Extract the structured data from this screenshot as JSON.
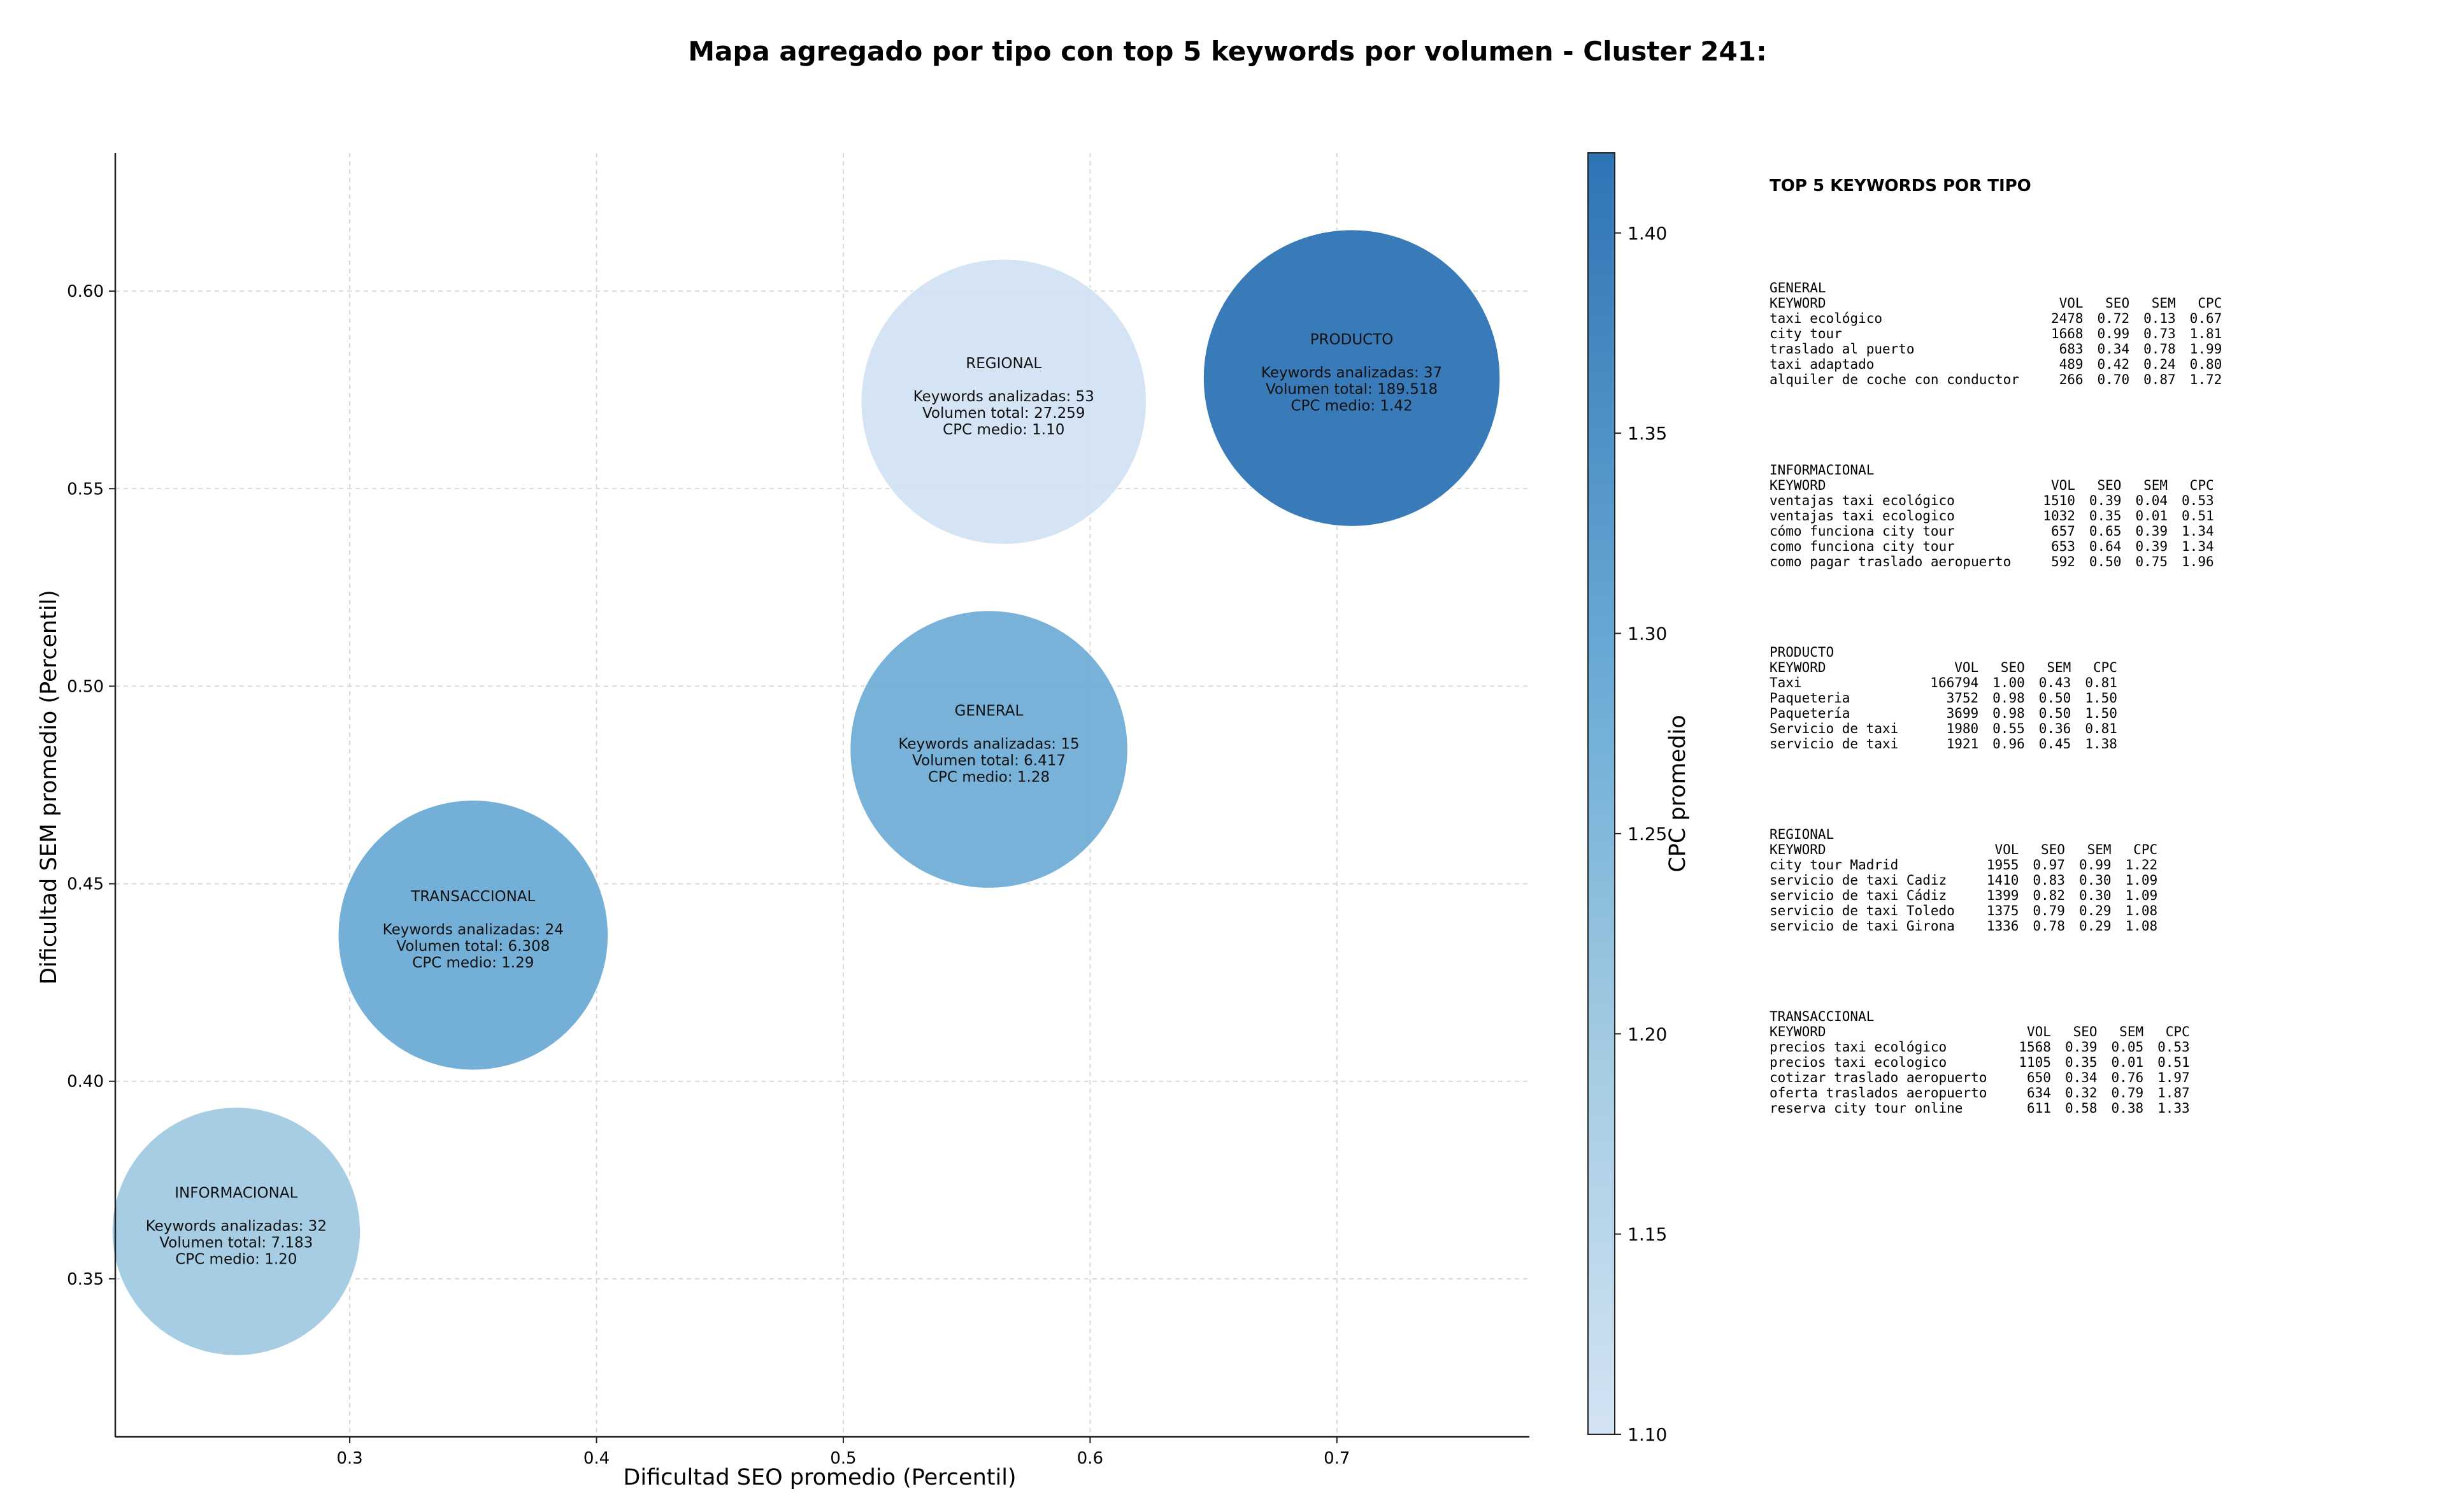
{
  "title": "Mapa agregado por tipo con top 5 keywords por volumen - Cluster 241:",
  "chart_data": {
    "type": "scatter",
    "title": "Mapa agregado por tipo con top 5 keywords por volumen - Cluster 241:",
    "xlabel": "Dificultad SEO promedio (Percentil)",
    "ylabel": "Dificultad SEM promedio (Percentil)",
    "xlim": [
      0.205,
      0.778
    ],
    "ylim": [
      0.31,
      0.635
    ],
    "xticks": [
      "0.3",
      "0.4",
      "0.5",
      "0.6",
      "0.7"
    ],
    "yticks": [
      "0.35",
      "0.40",
      "0.45",
      "0.50",
      "0.55",
      "0.60"
    ],
    "grid": true,
    "colorbar": {
      "label": "CPC promedio",
      "min": 1.1,
      "max": 1.42,
      "ticks": [
        "1.10",
        "1.15",
        "1.20",
        "1.25",
        "1.30",
        "1.35",
        "1.40"
      ],
      "colormap": "Blues"
    },
    "points": [
      {
        "name": "REGIONAL",
        "seo": 0.565,
        "sem": 0.572,
        "keywords_line": "Keywords analizadas: 53",
        "volume_line": "Volumen total: 27.259",
        "cpc_line": "CPC medio: 1.10",
        "cpc": 1.1,
        "volume": 27259
      },
      {
        "name": "PRODUCTO",
        "seo": 0.706,
        "sem": 0.578,
        "keywords_line": "Keywords analizadas: 37",
        "volume_line": "Volumen total: 189.518",
        "cpc_line": "CPC medio: 1.42",
        "cpc": 1.42,
        "volume": 189518
      },
      {
        "name": "GENERAL",
        "seo": 0.559,
        "sem": 0.484,
        "keywords_line": "Keywords analizadas: 15",
        "volume_line": "Volumen total: 6.417",
        "cpc_line": "CPC medio: 1.28",
        "cpc": 1.28,
        "volume": 6417
      },
      {
        "name": "TRANSACCIONAL",
        "seo": 0.35,
        "sem": 0.437,
        "keywords_line": "Keywords analizadas: 24",
        "volume_line": "Volumen total: 6.308",
        "cpc_line": "CPC medio: 1.29",
        "cpc": 1.29,
        "volume": 6308
      },
      {
        "name": "INFORMACIONAL",
        "seo": 0.254,
        "sem": 0.362,
        "keywords_line": "Keywords analizadas: 32",
        "volume_line": "Volumen total: 7.183",
        "cpc_line": "CPC medio: 1.20",
        "cpc": 1.2,
        "volume": 7183
      }
    ]
  },
  "panel": {
    "title": "TOP 5 KEYWORDS POR TIPO",
    "columns": {
      "keyword": "KEYWORD",
      "vol": "VOL",
      "seo": "SEO",
      "sem": "SEM",
      "cpc": "CPC"
    },
    "blocks": [
      {
        "name": "GENERAL",
        "rows": [
          {
            "keyword": "taxi ecológico",
            "vol": "2478",
            "seo": "0.72",
            "sem": "0.13",
            "cpc": "0.67"
          },
          {
            "keyword": "city tour",
            "vol": "1668",
            "seo": "0.99",
            "sem": "0.73",
            "cpc": "1.81"
          },
          {
            "keyword": "traslado al puerto",
            "vol": "683",
            "seo": "0.34",
            "sem": "0.78",
            "cpc": "1.99"
          },
          {
            "keyword": "taxi adaptado",
            "vol": "489",
            "seo": "0.42",
            "sem": "0.24",
            "cpc": "0.80"
          },
          {
            "keyword": "alquiler de coche con conductor",
            "vol": "266",
            "seo": "0.70",
            "sem": "0.87",
            "cpc": "1.72"
          }
        ]
      },
      {
        "name": "INFORMACIONAL",
        "rows": [
          {
            "keyword": "ventajas taxi ecológico",
            "vol": "1510",
            "seo": "0.39",
            "sem": "0.04",
            "cpc": "0.53"
          },
          {
            "keyword": "ventajas taxi ecologico",
            "vol": "1032",
            "seo": "0.35",
            "sem": "0.01",
            "cpc": "0.51"
          },
          {
            "keyword": "cómo funciona city tour",
            "vol": "657",
            "seo": "0.65",
            "sem": "0.39",
            "cpc": "1.34"
          },
          {
            "keyword": "como funciona city tour",
            "vol": "653",
            "seo": "0.64",
            "sem": "0.39",
            "cpc": "1.34"
          },
          {
            "keyword": "como pagar traslado aeropuerto",
            "vol": "592",
            "seo": "0.50",
            "sem": "0.75",
            "cpc": "1.96"
          }
        ]
      },
      {
        "name": "PRODUCTO",
        "rows": [
          {
            "keyword": "Taxi",
            "vol": "166794",
            "seo": "1.00",
            "sem": "0.43",
            "cpc": "0.81"
          },
          {
            "keyword": "Paqueteria",
            "vol": "3752",
            "seo": "0.98",
            "sem": "0.50",
            "cpc": "1.50"
          },
          {
            "keyword": "Paquetería",
            "vol": "3699",
            "seo": "0.98",
            "sem": "0.50",
            "cpc": "1.50"
          },
          {
            "keyword": "Servicio de taxi",
            "vol": "1980",
            "seo": "0.55",
            "sem": "0.36",
            "cpc": "0.81"
          },
          {
            "keyword": "servicio de taxi",
            "vol": "1921",
            "seo": "0.96",
            "sem": "0.45",
            "cpc": "1.38"
          }
        ]
      },
      {
        "name": "REGIONAL",
        "rows": [
          {
            "keyword": "city tour Madrid",
            "vol": "1955",
            "seo": "0.97",
            "sem": "0.99",
            "cpc": "1.22"
          },
          {
            "keyword": "servicio de taxi Cadiz",
            "vol": "1410",
            "seo": "0.83",
            "sem": "0.30",
            "cpc": "1.09"
          },
          {
            "keyword": "servicio de taxi Cádiz",
            "vol": "1399",
            "seo": "0.82",
            "sem": "0.30",
            "cpc": "1.09"
          },
          {
            "keyword": "servicio de taxi Toledo",
            "vol": "1375",
            "seo": "0.79",
            "sem": "0.29",
            "cpc": "1.08"
          },
          {
            "keyword": "servicio de taxi Girona",
            "vol": "1336",
            "seo": "0.78",
            "sem": "0.29",
            "cpc": "1.08"
          }
        ]
      },
      {
        "name": "TRANSACCIONAL",
        "rows": [
          {
            "keyword": "precios taxi ecológico",
            "vol": "1568",
            "seo": "0.39",
            "sem": "0.05",
            "cpc": "0.53"
          },
          {
            "keyword": "precios taxi ecologico",
            "vol": "1105",
            "seo": "0.35",
            "sem": "0.01",
            "cpc": "0.51"
          },
          {
            "keyword": "cotizar traslado aeropuerto",
            "vol": "650",
            "seo": "0.34",
            "sem": "0.76",
            "cpc": "1.97"
          },
          {
            "keyword": "oferta traslados aeropuerto",
            "vol": "634",
            "seo": "0.32",
            "sem": "0.79",
            "cpc": "1.87"
          },
          {
            "keyword": "reserva city tour online",
            "vol": "611",
            "seo": "0.58",
            "sem": "0.38",
            "cpc": "1.33"
          }
        ]
      }
    ]
  }
}
